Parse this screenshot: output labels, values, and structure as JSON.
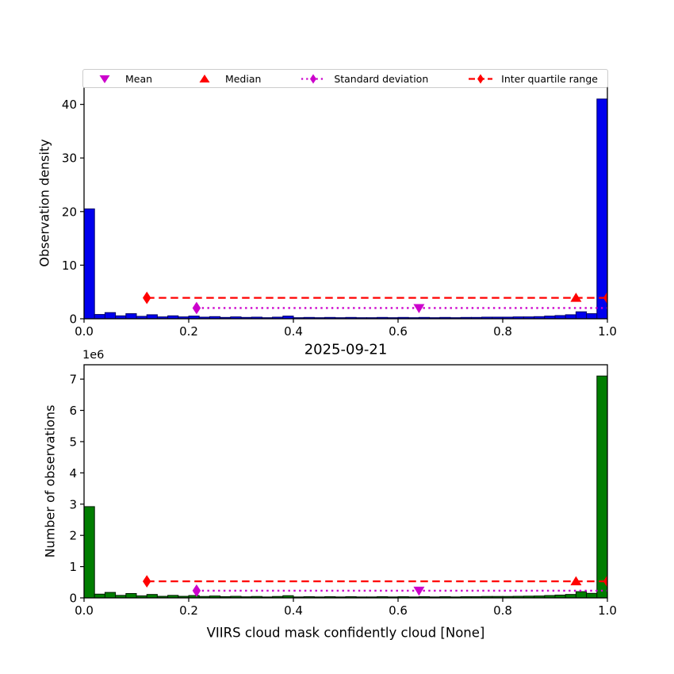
{
  "figure": {
    "title": "2025-09-21",
    "xlabel": "VIIRS cloud mask confidently cloud [None]",
    "offset_label": "1e6"
  },
  "legend": {
    "items": [
      {
        "label": "Mean",
        "marker": "triangle-down",
        "color": "#cc00cc"
      },
      {
        "label": "Median",
        "marker": "triangle-up",
        "color": "#ff0000"
      },
      {
        "label": "Standard deviation",
        "marker": "diamond-dotted-line",
        "color": "#cc00cc"
      },
      {
        "label": "Inter quartile range",
        "marker": "diamond-dashed-line",
        "color": "#ff0000"
      }
    ]
  },
  "chart_data": [
    {
      "type": "bar",
      "title": "",
      "ylabel": "Observation density",
      "xlabel": "",
      "xlim": [
        0.0,
        1.0
      ],
      "ylim": [
        0,
        43.2
      ],
      "xticks": [
        0.0,
        0.2,
        0.4,
        0.6,
        0.8,
        1.0
      ],
      "xtick_labels": [
        "0.0",
        "0.2",
        "0.4",
        "0.6",
        "0.8",
        "1.0"
      ],
      "show_xtick_labels": true,
      "yticks": [
        0,
        10,
        20,
        30,
        40
      ],
      "ytick_labels": [
        "0",
        "10",
        "20",
        "30",
        "40"
      ],
      "bin_start": 0.0,
      "bin_width": 0.02,
      "bar_color": "#0000ee",
      "bar_edge": "#000066",
      "values": [
        20.5,
        0.8,
        1.15,
        0.55,
        0.95,
        0.45,
        0.75,
        0.35,
        0.55,
        0.35,
        0.5,
        0.3,
        0.4,
        0.25,
        0.35,
        0.25,
        0.3,
        0.2,
        0.3,
        0.5,
        0.2,
        0.25,
        0.2,
        0.25,
        0.2,
        0.25,
        0.2,
        0.2,
        0.25,
        0.2,
        0.25,
        0.2,
        0.25,
        0.2,
        0.25,
        0.2,
        0.25,
        0.25,
        0.3,
        0.3,
        0.3,
        0.35,
        0.35,
        0.4,
        0.5,
        0.6,
        0.75,
        1.3,
        0.95,
        41.0
      ],
      "stats": {
        "mean": 0.64,
        "median": 0.94,
        "iqr_line": {
          "x1": 0.12,
          "x2": 1.0,
          "y": 3.9,
          "markers": [
            0.12,
            1.0
          ]
        },
        "std_line": {
          "x1": 0.215,
          "x2": 1.0,
          "y": 2.0,
          "markers": [
            0.215
          ]
        }
      }
    },
    {
      "type": "bar",
      "title": "2025-09-21",
      "ylabel": "Number of observations",
      "xlabel": "VIIRS cloud mask confidently cloud [None]",
      "offset_label": "1e6",
      "xlim": [
        0.0,
        1.0
      ],
      "ylim": [
        0,
        7460000
      ],
      "xticks": [
        0.0,
        0.2,
        0.4,
        0.6,
        0.8,
        1.0
      ],
      "xtick_labels": [
        "0.0",
        "0.2",
        "0.4",
        "0.6",
        "0.8",
        "1.0"
      ],
      "show_xtick_labels": true,
      "yticks": [
        0,
        1000000,
        2000000,
        3000000,
        4000000,
        5000000,
        6000000,
        7000000
      ],
      "ytick_labels": [
        "0",
        "1",
        "2",
        "3",
        "4",
        "5",
        "6",
        "7"
      ],
      "bin_start": 0.0,
      "bin_width": 0.02,
      "bar_color": "#007d00",
      "bar_edge": "#001a00",
      "values": [
        2920000,
        120000,
        175000,
        80000,
        140000,
        65000,
        110000,
        50000,
        80000,
        50000,
        75000,
        45000,
        60000,
        40000,
        50000,
        35000,
        45000,
        30000,
        45000,
        70000,
        30000,
        38000,
        30000,
        38000,
        30000,
        38000,
        30000,
        30000,
        38000,
        30000,
        38000,
        30000,
        38000,
        30000,
        38000,
        30000,
        38000,
        38000,
        45000,
        45000,
        45000,
        50000,
        55000,
        60000,
        75000,
        90000,
        110000,
        200000,
        145000,
        7100000
      ],
      "stats": {
        "mean": 0.64,
        "median": 0.94,
        "iqr_line": {
          "x1": 0.12,
          "x2": 1.0,
          "y": 530000,
          "markers": [
            0.12,
            1.0
          ]
        },
        "std_line": {
          "x1": 0.215,
          "x2": 1.0,
          "y": 230000,
          "markers": [
            0.215
          ]
        }
      }
    }
  ]
}
